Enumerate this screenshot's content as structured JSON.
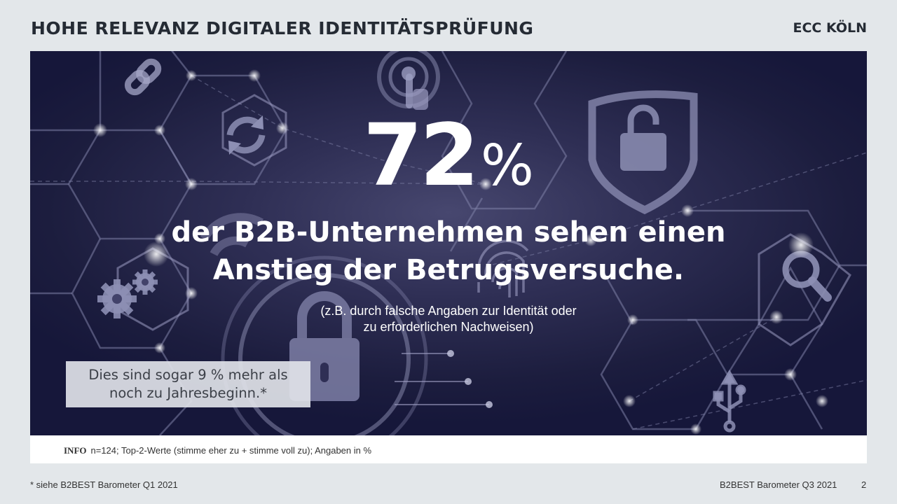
{
  "header": {
    "title": "HOHE RELEVANZ DIGITALER IDENTITÄTSPRÜFUNG",
    "brand": "ECC KÖLN"
  },
  "hero": {
    "stat_value": "72",
    "stat_unit": "%",
    "headline_line1": "der B2B-Unternehmen sehen einen",
    "headline_line2": "Anstieg der Betrugsversuche.",
    "note_line1": "(z.B. durch falsche Angaben zur Identität oder",
    "note_line2": "zu erforderlichen Nachweisen)",
    "callout_line1": "Dies sind sogar 9 % mehr als",
    "callout_line2": "noch zu Jahresbeginn.*",
    "icons": [
      "chain-link-icon",
      "refresh-icon",
      "touch-icon",
      "padlock-shield-icon",
      "gears-icon",
      "wifi-icon",
      "fingerprint-icon",
      "padlock-icon",
      "magnifier-icon",
      "usb-icon"
    ]
  },
  "info": {
    "label": "INFO",
    "text": "n=124; Top-2-Werte (stimme eher zu + stimme voll zu); Angaben in %"
  },
  "footer": {
    "footnote": "* siehe B2BEST Barometer Q1 2021",
    "source": "B2BEST Barometer Q3 2021",
    "page": "2"
  },
  "colors": {
    "page_background": "#e3e7ea",
    "hero_background": "#1c1d3e",
    "title_text": "#252b34",
    "hero_text": "#ffffff"
  }
}
